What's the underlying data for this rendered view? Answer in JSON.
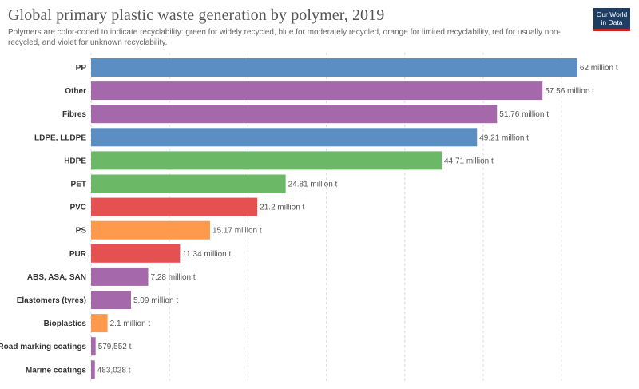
{
  "header": {
    "title": "Global primary plastic waste generation by polymer, 2019",
    "subtitle": "Polymers are color-coded to indicate recyclability: green for widely recycled, blue for moderately recycled, orange for limited recyclability, red for usually non-recycled, and violet for unknown recyclability."
  },
  "logo": {
    "line1": "Our World",
    "line2": "in Data"
  },
  "colors": {
    "green": "#6bb866",
    "blue": "#5b8fc4",
    "orange": "#ff9a4d",
    "red": "#e55050",
    "violet": "#a569ab"
  },
  "chart_data": {
    "type": "bar",
    "orientation": "horizontal",
    "unit": "million t",
    "grid": true,
    "xlim": [
      0,
      70
    ],
    "categories": [
      "PP",
      "Other",
      "Fibres",
      "LDPE, LLDPE",
      "HDPE",
      "PET",
      "PVC",
      "PS",
      "PUR",
      "ABS, ASA, SAN",
      "Elastomers (tyres)",
      "Bioplastics",
      "Road marking coatings",
      "Marine coatings"
    ],
    "values": [
      62,
      57.56,
      51.76,
      49.21,
      44.71,
      24.81,
      21.2,
      15.17,
      11.34,
      7.28,
      5.09,
      2.1,
      0.579552,
      0.483028
    ],
    "value_labels": [
      "62 million t",
      "57.56 million t",
      "51.76 million t",
      "49.21 million t",
      "44.71 million t",
      "24.81 million t",
      "21.2 million t",
      "15.17 million t",
      "11.34 million t",
      "7.28 million t",
      "5.09 million t",
      "2.1 million t",
      "579,552 t",
      "483,028 t"
    ],
    "recyclability": [
      "blue",
      "violet",
      "violet",
      "blue",
      "green",
      "green",
      "red",
      "orange",
      "red",
      "violet",
      "violet",
      "orange",
      "violet",
      "violet"
    ]
  }
}
